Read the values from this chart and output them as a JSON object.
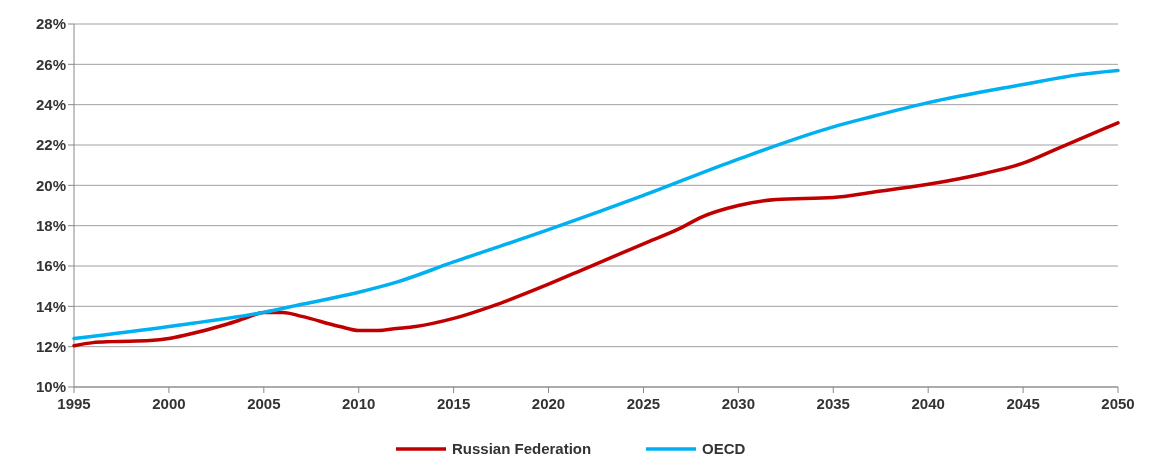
{
  "chart_data": {
    "type": "line",
    "xlim": [
      1995,
      2050
    ],
    "xticks": [
      1995,
      2000,
      2005,
      2010,
      2015,
      2020,
      2025,
      2030,
      2035,
      2040,
      2045,
      2050
    ],
    "ylim": [
      10,
      28
    ],
    "yticks": [
      {
        "value": 10,
        "label": "10%"
      },
      {
        "value": 12,
        "label": "12%"
      },
      {
        "value": 14,
        "label": "14%"
      },
      {
        "value": 16,
        "label": "16%"
      },
      {
        "value": 18,
        "label": "18%"
      },
      {
        "value": 20,
        "label": "20%"
      },
      {
        "value": 22,
        "label": "22%"
      },
      {
        "value": 24,
        "label": "24%"
      },
      {
        "value": 26,
        "label": "26%"
      },
      {
        "value": 28,
        "label": "28%"
      }
    ],
    "grid": "y",
    "legend": "bottom",
    "marker": "none",
    "line_style": "solid",
    "series": [
      {
        "name": "Russian Federation",
        "color": "#c00000",
        "x": [
          1995,
          1996,
          1997,
          1999,
          2000,
          2001,
          2003,
          2004,
          2005,
          2006,
          2007,
          2009,
          2010,
          2011,
          2012,
          2013,
          2015,
          2017,
          2020,
          2022,
          2025,
          2027,
          2028,
          2030,
          2032,
          2035,
          2037,
          2040,
          2043,
          2045,
          2047,
          2050
        ],
        "values": [
          12.05,
          12.2,
          12.25,
          12.3,
          12.4,
          12.6,
          13.1,
          13.4,
          13.7,
          13.7,
          13.5,
          13.0,
          12.8,
          12.8,
          12.9,
          13.0,
          13.4,
          14.0,
          15.1,
          15.9,
          17.1,
          17.9,
          18.4,
          19.0,
          19.3,
          19.4,
          19.65,
          20.05,
          20.6,
          21.1,
          21.9,
          23.1
        ]
      },
      {
        "name": "OECD",
        "color": "#00b0f0",
        "x": [
          1995,
          2000,
          2005,
          2007,
          2010,
          2012,
          2015,
          2020,
          2025,
          2030,
          2035,
          2037,
          2040,
          2045,
          2048,
          2050
        ],
        "values": [
          12.4,
          13.0,
          13.7,
          14.1,
          14.7,
          15.2,
          16.2,
          17.8,
          19.5,
          21.3,
          22.9,
          23.4,
          24.1,
          25.0,
          25.5,
          25.7
        ]
      }
    ]
  }
}
